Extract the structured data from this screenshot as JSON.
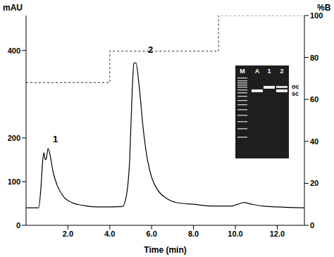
{
  "chart_data": {
    "type": "line",
    "x_label": "Time (min)",
    "y_label": "mAU",
    "y2_label": "%B",
    "xlim": [
      0,
      13.3
    ],
    "xticks": [
      {
        "value": 2,
        "label": "2.0"
      },
      {
        "value": 4,
        "label": "4.0"
      },
      {
        "value": 6,
        "label": "6.0"
      },
      {
        "value": 8,
        "label": "8.0"
      },
      {
        "value": 10,
        "label": "10.0"
      },
      {
        "value": 12,
        "label": "12.0"
      }
    ],
    "ylim": [
      0,
      480
    ],
    "yticks": [
      0,
      100,
      200,
      400
    ],
    "y2lim": [
      0,
      100
    ],
    "y2ticks": [
      0,
      20,
      40,
      60,
      80,
      100
    ],
    "grid": false,
    "series": [
      {
        "type": "line",
        "color": "#000000",
        "line_style": "solid",
        "x": [
          0,
          0.6,
          0.7,
          0.8,
          0.85,
          0.92,
          0.97,
          1.05,
          1.15,
          1.3,
          1.5,
          1.8,
          2.2,
          2.8,
          3.5,
          4.6,
          4.8,
          4.95,
          5.05,
          5.15,
          5.25,
          5.4,
          5.6,
          5.8,
          6.0,
          6.3,
          6.7,
          7.2,
          8,
          9,
          9.8,
          10.1,
          10.4,
          10.8,
          11.3,
          12,
          13.3
        ],
        "values": [
          40,
          40,
          80,
          150,
          166,
          150,
          153,
          176,
          160,
          120,
          90,
          65,
          52,
          45,
          42,
          43,
          70,
          150,
          280,
          370,
          372,
          320,
          220,
          150,
          110,
          80,
          62,
          52,
          48,
          44,
          44,
          48,
          52,
          48,
          44,
          42,
          40
        ]
      },
      {
        "type": "step",
        "axis": "y2",
        "color": "#555555",
        "line_style": "dashed",
        "x": [
          0,
          4.0,
          9.2,
          13.3
        ],
        "values": [
          68,
          83,
          100,
          100
        ]
      }
    ],
    "annotations": [
      {
        "text": "1",
        "x": 1.4,
        "y": 198
      },
      {
        "text": "2",
        "x": 5.95,
        "y": 402
      }
    ],
    "inset": {
      "lanes": [
        "M",
        "A",
        "1",
        "2"
      ],
      "bands": [
        "oc",
        "sc"
      ]
    }
  }
}
